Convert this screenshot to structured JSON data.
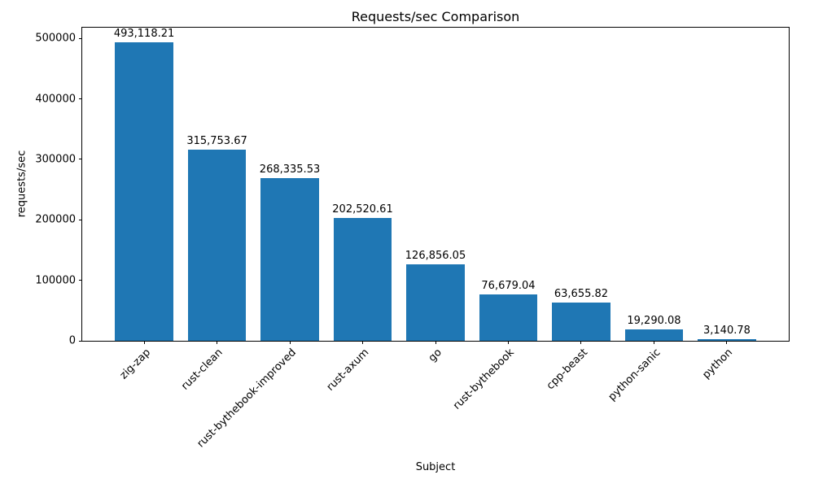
{
  "chart_data": {
    "type": "bar",
    "title": "Requests/sec Comparison",
    "xlabel": "Subject",
    "ylabel": "requests/sec",
    "categories": [
      "zig-zap",
      "rust-clean",
      "rust-bythebook-improved",
      "rust-axum",
      "go",
      "rust-bythebook",
      "cpp-beast",
      "python-sanic",
      "python"
    ],
    "values": [
      493118.21,
      315753.67,
      268335.53,
      202520.61,
      126856.05,
      76679.04,
      63655.82,
      19290.08,
      3140.78
    ],
    "bar_labels": [
      "493,118.21",
      "315,753.67",
      "268,335.53",
      "202,520.61",
      "126,856.05",
      "76,679.04",
      "63,655.82",
      "19,290.08",
      "3,140.78"
    ],
    "bar_color": "#1f77b4",
    "ylim": [
      0,
      517774
    ],
    "yticks": [
      0,
      100000,
      200000,
      300000,
      400000,
      500000
    ],
    "ytick_labels": [
      "0",
      "100000",
      "200000",
      "300000",
      "400000",
      "500000"
    ],
    "legend": "none",
    "grid": false
  }
}
